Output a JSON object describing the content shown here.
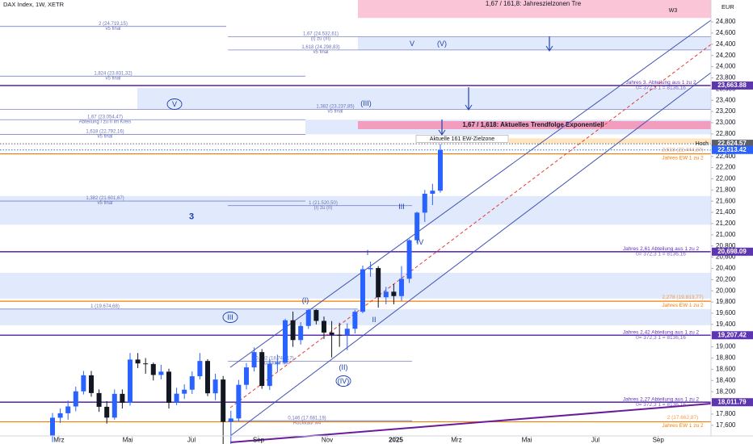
{
  "header": {
    "symbol": "DAX Index, 1W, XETR",
    "currency": "EUR"
  },
  "chart_data": {
    "type": "candlestick",
    "x": [
      0,
      1,
      2,
      3,
      4,
      5,
      6,
      7,
      8,
      9,
      10,
      11,
      12,
      13,
      14,
      15,
      16,
      17,
      18,
      19,
      20,
      21,
      22,
      23,
      24,
      25,
      26,
      27,
      28,
      29,
      30,
      31,
      32,
      33,
      34,
      35,
      36,
      37,
      38,
      39,
      40,
      41,
      42,
      43,
      44,
      45,
      46,
      47,
      48,
      49,
      50
    ],
    "open": [
      17419,
      17735,
      17815,
      17936,
      18206,
      18492,
      18175,
      17930,
      17737,
      18161,
      18001,
      18773,
      18704,
      18693,
      18498,
      18557,
      18002,
      18164,
      18235,
      18475,
      18748,
      18171,
      18417,
      17661,
      17722,
      18322,
      18633,
      18906,
      18302,
      18700,
      18720,
      19474,
      19121,
      19373,
      19657,
      19463,
      19255,
      19215,
      19211,
      19323,
      19626,
      20385,
      20406,
      19885,
      19984,
      19906,
      20215,
      20903,
      21395,
      21732,
      21787
    ],
    "high": [
      17820,
      17900,
      18040,
      18290,
      18570,
      18570,
      18240,
      18030,
      18240,
      18240,
      18890,
      18890,
      18800,
      18720,
      18680,
      18610,
      18270,
      18330,
      18560,
      18890,
      18780,
      18520,
      18480,
      17860,
      18410,
      18710,
      18990,
      18960,
      18780,
      18860,
      19500,
      19630,
      19440,
      19680,
      19670,
      19540,
      19460,
      19430,
      19420,
      19660,
      20450,
      20520,
      20440,
      20070,
      20120,
      20440,
      20920,
      21410,
      21800,
      21910,
      22620
    ],
    "low": [
      17300,
      17640,
      17700,
      17850,
      18150,
      18110,
      17840,
      17630,
      17700,
      17900,
      17950,
      18620,
      18520,
      18400,
      18420,
      17900,
      17960,
      18070,
      18160,
      18420,
      18120,
      18050,
      17020,
      17180,
      17670,
      18240,
      18560,
      18250,
      18230,
      18560,
      18700,
      19000,
      19040,
      19320,
      19400,
      19140,
      18810,
      19000,
      18940,
      19240,
      19600,
      20250,
      19700,
      19760,
      19760,
      19820,
      20140,
      20850,
      21230,
      21530,
      21750
    ],
    "close": [
      17735,
      17815,
      17936,
      18206,
      18492,
      18175,
      17930,
      17737,
      18161,
      18001,
      18773,
      18704,
      18693,
      18498,
      18557,
      18002,
      18164,
      18235,
      18475,
      18748,
      18171,
      18417,
      17661,
      17722,
      18322,
      18633,
      18906,
      18302,
      18700,
      18720,
      19474,
      19121,
      19373,
      19657,
      19463,
      19255,
      19215,
      19211,
      19323,
      19626,
      20385,
      20406,
      19885,
      19984,
      19906,
      20215,
      20903,
      21395,
      21732,
      21787,
      22513
    ],
    "up_color": "#2962ff",
    "down_color": "#131722",
    "xlim": [
      -6.77,
      84.9
    ],
    "ylim": [
      17410,
      25190
    ],
    "grid": false,
    "xticks": [
      {
        "value": 0.83,
        "label": "Mrz"
      },
      {
        "value": 9.69,
        "label": "Mai"
      },
      {
        "value": 17.92,
        "label": "Jul"
      },
      {
        "value": 26.56,
        "label": "Sep"
      },
      {
        "value": 35.42,
        "label": "Nov"
      },
      {
        "value": 44.27,
        "label": "2025"
      },
      {
        "value": 52.08,
        "label": "Mrz"
      },
      {
        "value": 61.15,
        "label": "Mai"
      },
      {
        "value": 70.0,
        "label": "Jul"
      },
      {
        "value": 78.1,
        "label": "Sep"
      }
    ],
    "yticks": [
      {
        "value": 17600,
        "label": "17,600"
      },
      {
        "value": 17800,
        "label": "17,800"
      },
      {
        "value": 18000,
        "label": "18,000"
      },
      {
        "value": 18200,
        "label": "18,200"
      },
      {
        "value": 18400,
        "label": "18,400"
      },
      {
        "value": 18600,
        "label": "18,600"
      },
      {
        "value": 18800,
        "label": "18,800"
      },
      {
        "value": 19000,
        "label": "19,000"
      },
      {
        "value": 19200,
        "label": "19,200"
      },
      {
        "value": 19400,
        "label": "19,400"
      },
      {
        "value": 19600,
        "label": "19,600"
      },
      {
        "value": 19800,
        "label": "19,800"
      },
      {
        "value": 20000,
        "label": "20,000"
      },
      {
        "value": 20200,
        "label": "20,200"
      },
      {
        "value": 20400,
        "label": "20,400"
      },
      {
        "value": 20600,
        "label": "20,600"
      },
      {
        "value": 20800,
        "label": "20,800"
      },
      {
        "value": 21000,
        "label": "21,000"
      },
      {
        "value": 21200,
        "label": "21,200"
      },
      {
        "value": 21400,
        "label": "21,400"
      },
      {
        "value": 21600,
        "label": "21,600"
      },
      {
        "value": 21800,
        "label": "21,800"
      },
      {
        "value": 22000,
        "label": "22,000"
      },
      {
        "value": 22200,
        "label": "22,200"
      },
      {
        "value": 22400,
        "label": "22,400"
      },
      {
        "value": 22600,
        "label": "22,600"
      },
      {
        "value": 22800,
        "label": "22,800"
      },
      {
        "value": 23000,
        "label": "23,000"
      },
      {
        "value": 23200,
        "label": "23,200"
      },
      {
        "value": 23400,
        "label": "23,400"
      },
      {
        "value": 23600,
        "label": "23,600"
      },
      {
        "value": 23800,
        "label": "23,800"
      },
      {
        "value": 24000,
        "label": "24,000"
      },
      {
        "value": 24200,
        "label": "24,200"
      },
      {
        "value": 24400,
        "label": "24,400"
      },
      {
        "value": 24600,
        "label": "24,600"
      },
      {
        "value": 24800,
        "label": "24,800"
      }
    ],
    "zones": [
      {
        "top": 25190,
        "bottom": 24870,
        "color": "#f8bbd0",
        "label": "1,67 / 161,8: Jahreszielzonen Tre",
        "sub": "W3"
      },
      {
        "top": 24532.61,
        "bottom": 24298.83,
        "color": "#dbe6fb"
      },
      {
        "top": 23620,
        "bottom": 23237.85,
        "color": "#dbe6fb"
      },
      {
        "top": 23054.47,
        "bottom": 22792.16,
        "color": "#dbe6fb"
      },
      {
        "top": 23029,
        "bottom": 22885,
        "color": "#f48fb1",
        "label": "1,67 / 1,618: Aktuelles Trendfolge Exponentiell"
      },
      {
        "top": 22720,
        "bottom": 22630,
        "color": "#ffe0b2",
        "label": "Aktuelle 161 EW-Zielzone"
      },
      {
        "top": 21690,
        "bottom": 21180,
        "color": "#dbe6fb"
      },
      {
        "top": 20322,
        "bottom": 19861,
        "color": "#dbe6fb"
      },
      {
        "top": 19674,
        "bottom": 19386,
        "color": "#dbe6fb"
      }
    ],
    "fib_levels": [
      {
        "value": 24719.15,
        "label": "2 (24.719,15)",
        "sub": "v5 final"
      },
      {
        "value": 24532.61,
        "label": "1,67 (24.532,61)",
        "sub": "(I) zu (III)"
      },
      {
        "value": 24298.83,
        "label": "1,618 (24.298,83)",
        "sub": "v5 final"
      },
      {
        "value": 23831.32,
        "label": "1,824 (23.831,32)",
        "sub": "v5 final"
      },
      {
        "value": 23237.85,
        "label": "1,382 (23.237,85)",
        "sub": "v5 final"
      },
      {
        "value": 23054.47,
        "label": "1,67 (23.054,47)",
        "sub": "Abteilung I zu II im Kreis"
      },
      {
        "value": 22792.16,
        "label": "1,618 (22.792,16)",
        "sub": "v5 final"
      },
      {
        "value": 21601.67,
        "label": "1,382 (21.601,67)",
        "sub": "v5 final"
      },
      {
        "value": 21520.5,
        "label": "1 (21.520,50)",
        "sub": "(I) zu (II)"
      },
      {
        "value": 19674.68,
        "label": "1 (19.674,68)"
      },
      {
        "value": 18742.17,
        "label": "0,382 (18.742,17)",
        "sub": "Rückkauf w4"
      },
      {
        "value": 17681.19,
        "label": "0,146 (17.681,19)",
        "sub": "Rückkauf w4"
      }
    ],
    "year_levels": [
      {
        "value": 23663.88,
        "tag": "23,663.88",
        "label": "Jahres 3. Abteilung aus 1 zu 2",
        "sub": "0= 372,3 1 = 8136,16"
      },
      {
        "value": 20698.09,
        "tag": "20,698.09",
        "label": "Jahres 2,61 Abteilung aus 1 zu 2",
        "sub": "0= 372,3 1 = 8136,16"
      },
      {
        "value": 19207.42,
        "tag": "19,207.42",
        "label": "Jahres 2,42 Abteilung aus 1 zu 2",
        "sub": "0= 372,3 1 = 8136,16"
      },
      {
        "value": 18011.79,
        "tag": "18,011.79",
        "label": "Jahres 2,27 Abteilung aus 1 zu 2",
        "sub": "0= 372,3 1 = 8136,16"
      }
    ],
    "ew_levels": [
      {
        "value": 22444.37,
        "label": "2,618 (22.444,37)",
        "sub": "Jahres EW 1 zu 2"
      },
      {
        "value": 19813.77,
        "label": "2,278 (19.813,77)",
        "sub": "Jahres EW 1 zu 2"
      },
      {
        "value": 17662.87,
        "label": "2 (17.662,87)",
        "sub": "Jahres EW 1 zu 2"
      }
    ],
    "price_tags": [
      {
        "value": 22624.57,
        "tag": "22,624.57",
        "note": "Hoch",
        "color": "#5d606b"
      },
      {
        "value": 22513.42,
        "tag": "22,513.42",
        "color": "#2962ff"
      }
    ],
    "wave_labels": [
      {
        "text": "V",
        "circled": true
      },
      {
        "text": "V"
      },
      {
        "text": "(V)"
      },
      {
        "text": "(III)"
      },
      {
        "text": "3"
      },
      {
        "text": "III"
      },
      {
        "text": "IV"
      },
      {
        "text": "I"
      },
      {
        "text": "(I)"
      },
      {
        "text": "III",
        "circled": true
      },
      {
        "text": "II"
      },
      {
        "text": "(II)"
      },
      {
        "text": "(IV)",
        "circled": true
      }
    ]
  }
}
